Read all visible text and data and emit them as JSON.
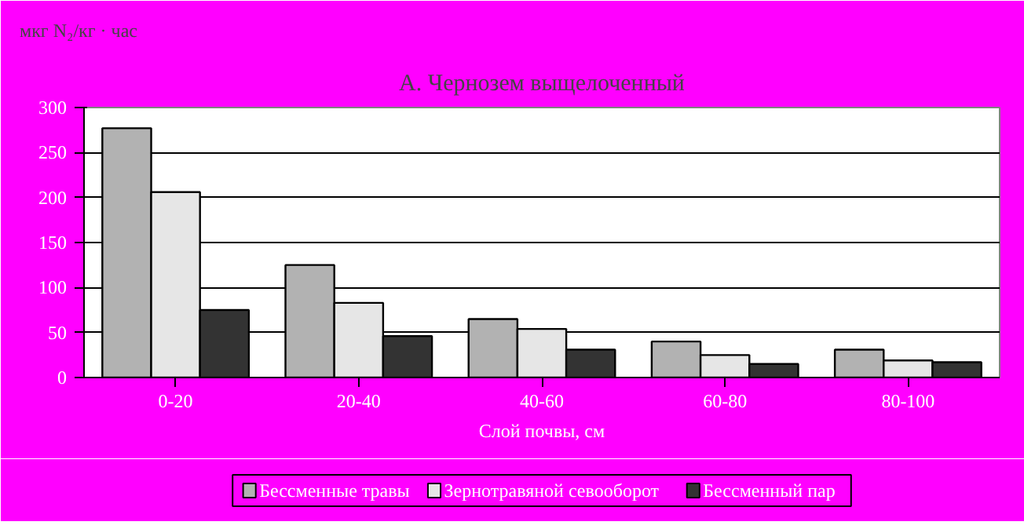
{
  "chart_data": {
    "type": "bar",
    "title": "А. Чернозем выщелоченный",
    "ylabel": "мкг N₂/кг · час",
    "xlabel": "Слой почвы, см",
    "categories": [
      "0-20",
      "20-40",
      "40-60",
      "60-80",
      "80-100"
    ],
    "series": [
      {
        "name": "Бессменные травы",
        "color": "#b2b2b2",
        "values": [
          277,
          125,
          65,
          40,
          31
        ]
      },
      {
        "name": "Зернотравяной севооборот",
        "color": "#e6e6e6",
        "values": [
          206,
          83,
          54,
          25,
          19
        ]
      },
      {
        "name": "Бессменный пар",
        "color": "#333333",
        "values": [
          75,
          46,
          31,
          15,
          17
        ]
      }
    ],
    "ylim": [
      0,
      300
    ],
    "yticks": [
      0,
      50,
      100,
      150,
      200,
      250,
      300
    ],
    "grid": "y",
    "legend": "bottom"
  }
}
